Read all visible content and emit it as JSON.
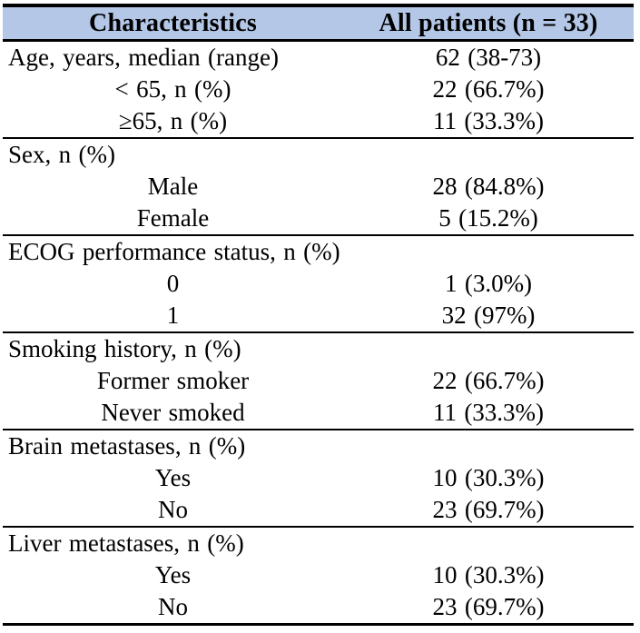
{
  "table": {
    "title_columns": [
      "Characteristics",
      "All patients (n = 33)"
    ],
    "colors": {
      "header_bg": "#b4c7e7",
      "border": "#000000",
      "text": "#000000",
      "page_bg": "#ffffff"
    },
    "sections": [
      {
        "header": {
          "label": "Age, years, median (range)",
          "value": "62 (38-73)"
        },
        "rows": [
          {
            "label": "< 65, n (%)",
            "value": "22 (66.7%)"
          },
          {
            "label": "≥65, n (%)",
            "value": "11 (33.3%)"
          }
        ]
      },
      {
        "header": {
          "label": "Sex, n (%)",
          "value": ""
        },
        "rows": [
          {
            "label": "Male",
            "value": "28 (84.8%)"
          },
          {
            "label": "Female",
            "value": "5 (15.2%)"
          }
        ]
      },
      {
        "header": {
          "label": "ECOG performance status, n (%)",
          "value": ""
        },
        "rows": [
          {
            "label": "0",
            "value": "1 (3.0%)"
          },
          {
            "label": "1",
            "value": "32 (97%)"
          }
        ]
      },
      {
        "header": {
          "label": "Smoking history, n (%)",
          "value": ""
        },
        "rows": [
          {
            "label": "Former smoker",
            "value": "22 (66.7%)"
          },
          {
            "label": "Never smoked",
            "value": "11 (33.3%)"
          }
        ]
      },
      {
        "header": {
          "label": "Brain metastases, n (%)",
          "value": ""
        },
        "rows": [
          {
            "label": "Yes",
            "value": "10 (30.3%)"
          },
          {
            "label": "No",
            "value": "23 (69.7%)"
          }
        ]
      },
      {
        "header": {
          "label": "Liver metastases, n (%)",
          "value": ""
        },
        "rows": [
          {
            "label": "Yes",
            "value": "10 (30.3%)"
          },
          {
            "label": "No",
            "value": "23 (69.7%)"
          }
        ]
      }
    ]
  }
}
